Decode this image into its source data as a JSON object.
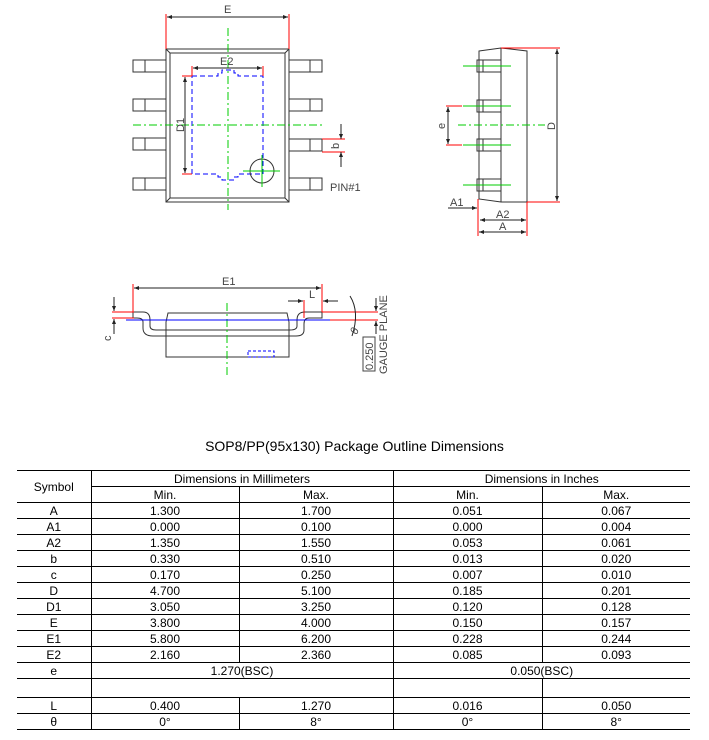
{
  "drawing": {
    "top_view": {
      "label_E": "E",
      "label_E2": "E2",
      "label_D1": "D1",
      "label_b": "b",
      "label_pin1": "PIN#1"
    },
    "side_view": {
      "label_D": "D",
      "label_e": "e",
      "label_A1": "A1",
      "label_A2": "A2",
      "label_A": "A"
    },
    "front_view": {
      "label_E1": "E1",
      "label_L": "L",
      "label_c": "c",
      "label_theta": "θ",
      "gauge_value": "0.250",
      "gauge_label": "GAUGE PLANE"
    },
    "colors": {
      "extension": "#ff0000",
      "centerline": "#00cc00",
      "pad": "#0000ff"
    }
  },
  "title": "SOP8/PP(95x130) Package Outline Dimensions",
  "table": {
    "symbol_header": "Symbol",
    "mm_header": "Dimensions in Millimeters",
    "inch_header": "Dimensions in Inches",
    "min": "Min.",
    "max": "Max.",
    "rows": [
      {
        "symbol": "A",
        "mm_min": "1.300",
        "mm_max": "1.700",
        "in_min": "0.051",
        "in_max": "0.067"
      },
      {
        "symbol": "A1",
        "mm_min": "0.000",
        "mm_max": "0.100",
        "in_min": "0.000",
        "in_max": "0.004"
      },
      {
        "symbol": "A2",
        "mm_min": "1.350",
        "mm_max": "1.550",
        "in_min": "0.053",
        "in_max": "0.061"
      },
      {
        "symbol": "b",
        "mm_min": "0.330",
        "mm_max": "0.510",
        "in_min": "0.013",
        "in_max": "0.020"
      },
      {
        "symbol": "c",
        "mm_min": "0.170",
        "mm_max": "0.250",
        "in_min": "0.007",
        "in_max": "0.010"
      },
      {
        "symbol": "D",
        "mm_min": "4.700",
        "mm_max": "5.100",
        "in_min": "0.185",
        "in_max": "0.201"
      },
      {
        "symbol": "D1",
        "mm_min": "3.050",
        "mm_max": "3.250",
        "in_min": "0.120",
        "in_max": "0.128"
      },
      {
        "symbol": "E",
        "mm_min": "3.800",
        "mm_max": "4.000",
        "in_min": "0.150",
        "in_max": "0.157"
      },
      {
        "symbol": "E1",
        "mm_min": "5.800",
        "mm_max": "6.200",
        "in_min": "0.228",
        "in_max": "0.244"
      },
      {
        "symbol": "E2",
        "mm_min": "2.160",
        "mm_max": "2.360",
        "in_min": "0.085",
        "in_max": "0.093"
      }
    ],
    "e_row": {
      "symbol": "e",
      "mm": "1.270(BSC)",
      "in": "0.050(BSC)"
    },
    "tail_rows": [
      {
        "symbol": "L",
        "mm_min": "0.400",
        "mm_max": "1.270",
        "in_min": "0.016",
        "in_max": "0.050"
      },
      {
        "symbol": "θ",
        "mm_min": "0°",
        "mm_max": "8°",
        "in_min": "0°",
        "in_max": "8°"
      }
    ]
  }
}
